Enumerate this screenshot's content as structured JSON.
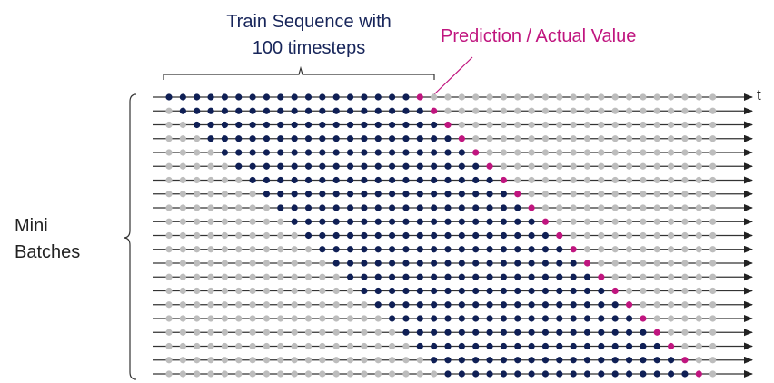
{
  "train_label": {
    "line1": "Train Sequence with",
    "line2": "100 timesteps"
  },
  "prediction_label": "Prediction / Actual Value",
  "mini_batches_label": {
    "line1": "Mini",
    "line2": "Batches"
  },
  "time_axis_label": "t",
  "diagram": {
    "rows": 21,
    "points_per_row": 40,
    "train_window": 18,
    "colors": {
      "train": "#0f1f55",
      "prediction": "#c0157f",
      "inactive": "#bdbdbd",
      "line": "#333333"
    }
  }
}
